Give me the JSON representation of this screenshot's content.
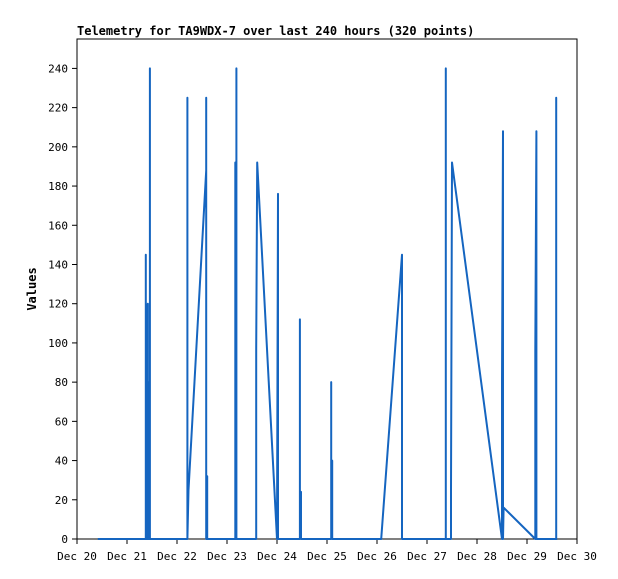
{
  "chart_data": {
    "type": "line",
    "title": "Telemetry for TA9WDX-7 over last 240 hours (320 points)",
    "xlabel": "",
    "ylabel": "Values",
    "ylim": [
      0,
      255
    ],
    "yticks": [
      0,
      20,
      40,
      60,
      80,
      100,
      120,
      140,
      160,
      180,
      200,
      220,
      240
    ],
    "xlim": [
      "2023-12-20",
      "2023-12-30"
    ],
    "xticks": [
      {
        "date": "2023-12-20",
        "label": "Dec 20"
      },
      {
        "date": "2023-12-21",
        "label": "Dec 21"
      },
      {
        "date": "2023-12-22",
        "label": "Dec 22"
      },
      {
        "date": "2023-12-23",
        "label": "Dec 23"
      },
      {
        "date": "2023-12-24",
        "label": "Dec 24"
      },
      {
        "date": "2023-12-25",
        "label": "Dec 25"
      },
      {
        "date": "2023-12-26",
        "label": "Dec 26"
      },
      {
        "date": "2023-12-27",
        "label": "Dec 27"
      },
      {
        "date": "2023-12-28",
        "label": "Dec 28"
      },
      {
        "date": "2023-12-29",
        "label": "Dec 29"
      },
      {
        "date": "2023-12-30",
        "label": "Dec 30"
      }
    ],
    "grid": false,
    "line_color": "#1565c0",
    "series": [
      {
        "points": [
          [
            "2023-12-20 10:00",
            0
          ],
          [
            "2023-12-21 09:00",
            0
          ],
          [
            "2023-12-21 09:00",
            145
          ],
          [
            "2023-12-21 09:00",
            0
          ],
          [
            "2023-12-21 10:00",
            0
          ],
          [
            "2023-12-21 10:00",
            120
          ],
          [
            "2023-12-21 10:00",
            0
          ],
          [
            "2023-12-21 10:30",
            0
          ],
          [
            "2023-12-21 10:30",
            80
          ],
          [
            "2023-12-21 10:30",
            0
          ],
          [
            "2023-12-21 11:00",
            0
          ],
          [
            "2023-12-21 11:00",
            240
          ],
          [
            "2023-12-21 11:00",
            0
          ],
          [
            "2023-12-22 05:00",
            0
          ],
          [
            "2023-12-22 05:00",
            225
          ],
          [
            "2023-12-22 05:00",
            0
          ],
          [
            "2023-12-22 05:30",
            25
          ],
          [
            "2023-12-22 14:00",
            188
          ],
          [
            "2023-12-22 14:00",
            225
          ],
          [
            "2023-12-22 14:00",
            0
          ],
          [
            "2023-12-22 14:30",
            32
          ],
          [
            "2023-12-22 14:30",
            0
          ],
          [
            "2023-12-23 04:00",
            0
          ],
          [
            "2023-12-23 04:00",
            192
          ],
          [
            "2023-12-23 04:00",
            0
          ],
          [
            "2023-12-23 04:30",
            0
          ],
          [
            "2023-12-23 04:30",
            240
          ],
          [
            "2023-12-23 04:30",
            0
          ],
          [
            "2023-12-23 14:00",
            0
          ],
          [
            "2023-12-23 14:00",
            97
          ],
          [
            "2023-12-23 14:30",
            192
          ],
          [
            "2023-12-24 00:00",
            0
          ],
          [
            "2023-12-24 00:30",
            176
          ],
          [
            "2023-12-24 00:30",
            0
          ],
          [
            "2023-12-24 11:00",
            0
          ],
          [
            "2023-12-24 11:00",
            112
          ],
          [
            "2023-12-24 11:00",
            0
          ],
          [
            "2023-12-24 11:30",
            24
          ],
          [
            "2023-12-24 11:30",
            0
          ],
          [
            "2023-12-25 02:00",
            0
          ],
          [
            "2023-12-25 02:00",
            80
          ],
          [
            "2023-12-25 02:00",
            0
          ],
          [
            "2023-12-25 02:30",
            40
          ],
          [
            "2023-12-25 02:30",
            0
          ],
          [
            "2023-12-26 02:00",
            0
          ],
          [
            "2023-12-26 12:00",
            145
          ],
          [
            "2023-12-26 12:00",
            0
          ],
          [
            "2023-12-27 09:00",
            0
          ],
          [
            "2023-12-27 09:00",
            240
          ],
          [
            "2023-12-27 09:00",
            0
          ],
          [
            "2023-12-27 11:30",
            0
          ],
          [
            "2023-12-27 11:30",
            25
          ],
          [
            "2023-12-27 12:00",
            192
          ],
          [
            "2023-12-28 12:00",
            0
          ],
          [
            "2023-12-28 12:00",
            80
          ],
          [
            "2023-12-28 12:30",
            208
          ],
          [
            "2023-12-28 12:30",
            0
          ],
          [
            "2023-12-28 12:45",
            16
          ],
          [
            "2023-12-29 04:00",
            0
          ],
          [
            "2023-12-29 04:00",
            96
          ],
          [
            "2023-12-29 04:30",
            208
          ],
          [
            "2023-12-29 04:30",
            0
          ],
          [
            "2023-12-29 14:00",
            0
          ],
          [
            "2023-12-29 14:00",
            225
          ],
          [
            "2023-12-29 14:00",
            0
          ],
          [
            "2023-12-29 14:30",
            0
          ]
        ]
      }
    ]
  }
}
